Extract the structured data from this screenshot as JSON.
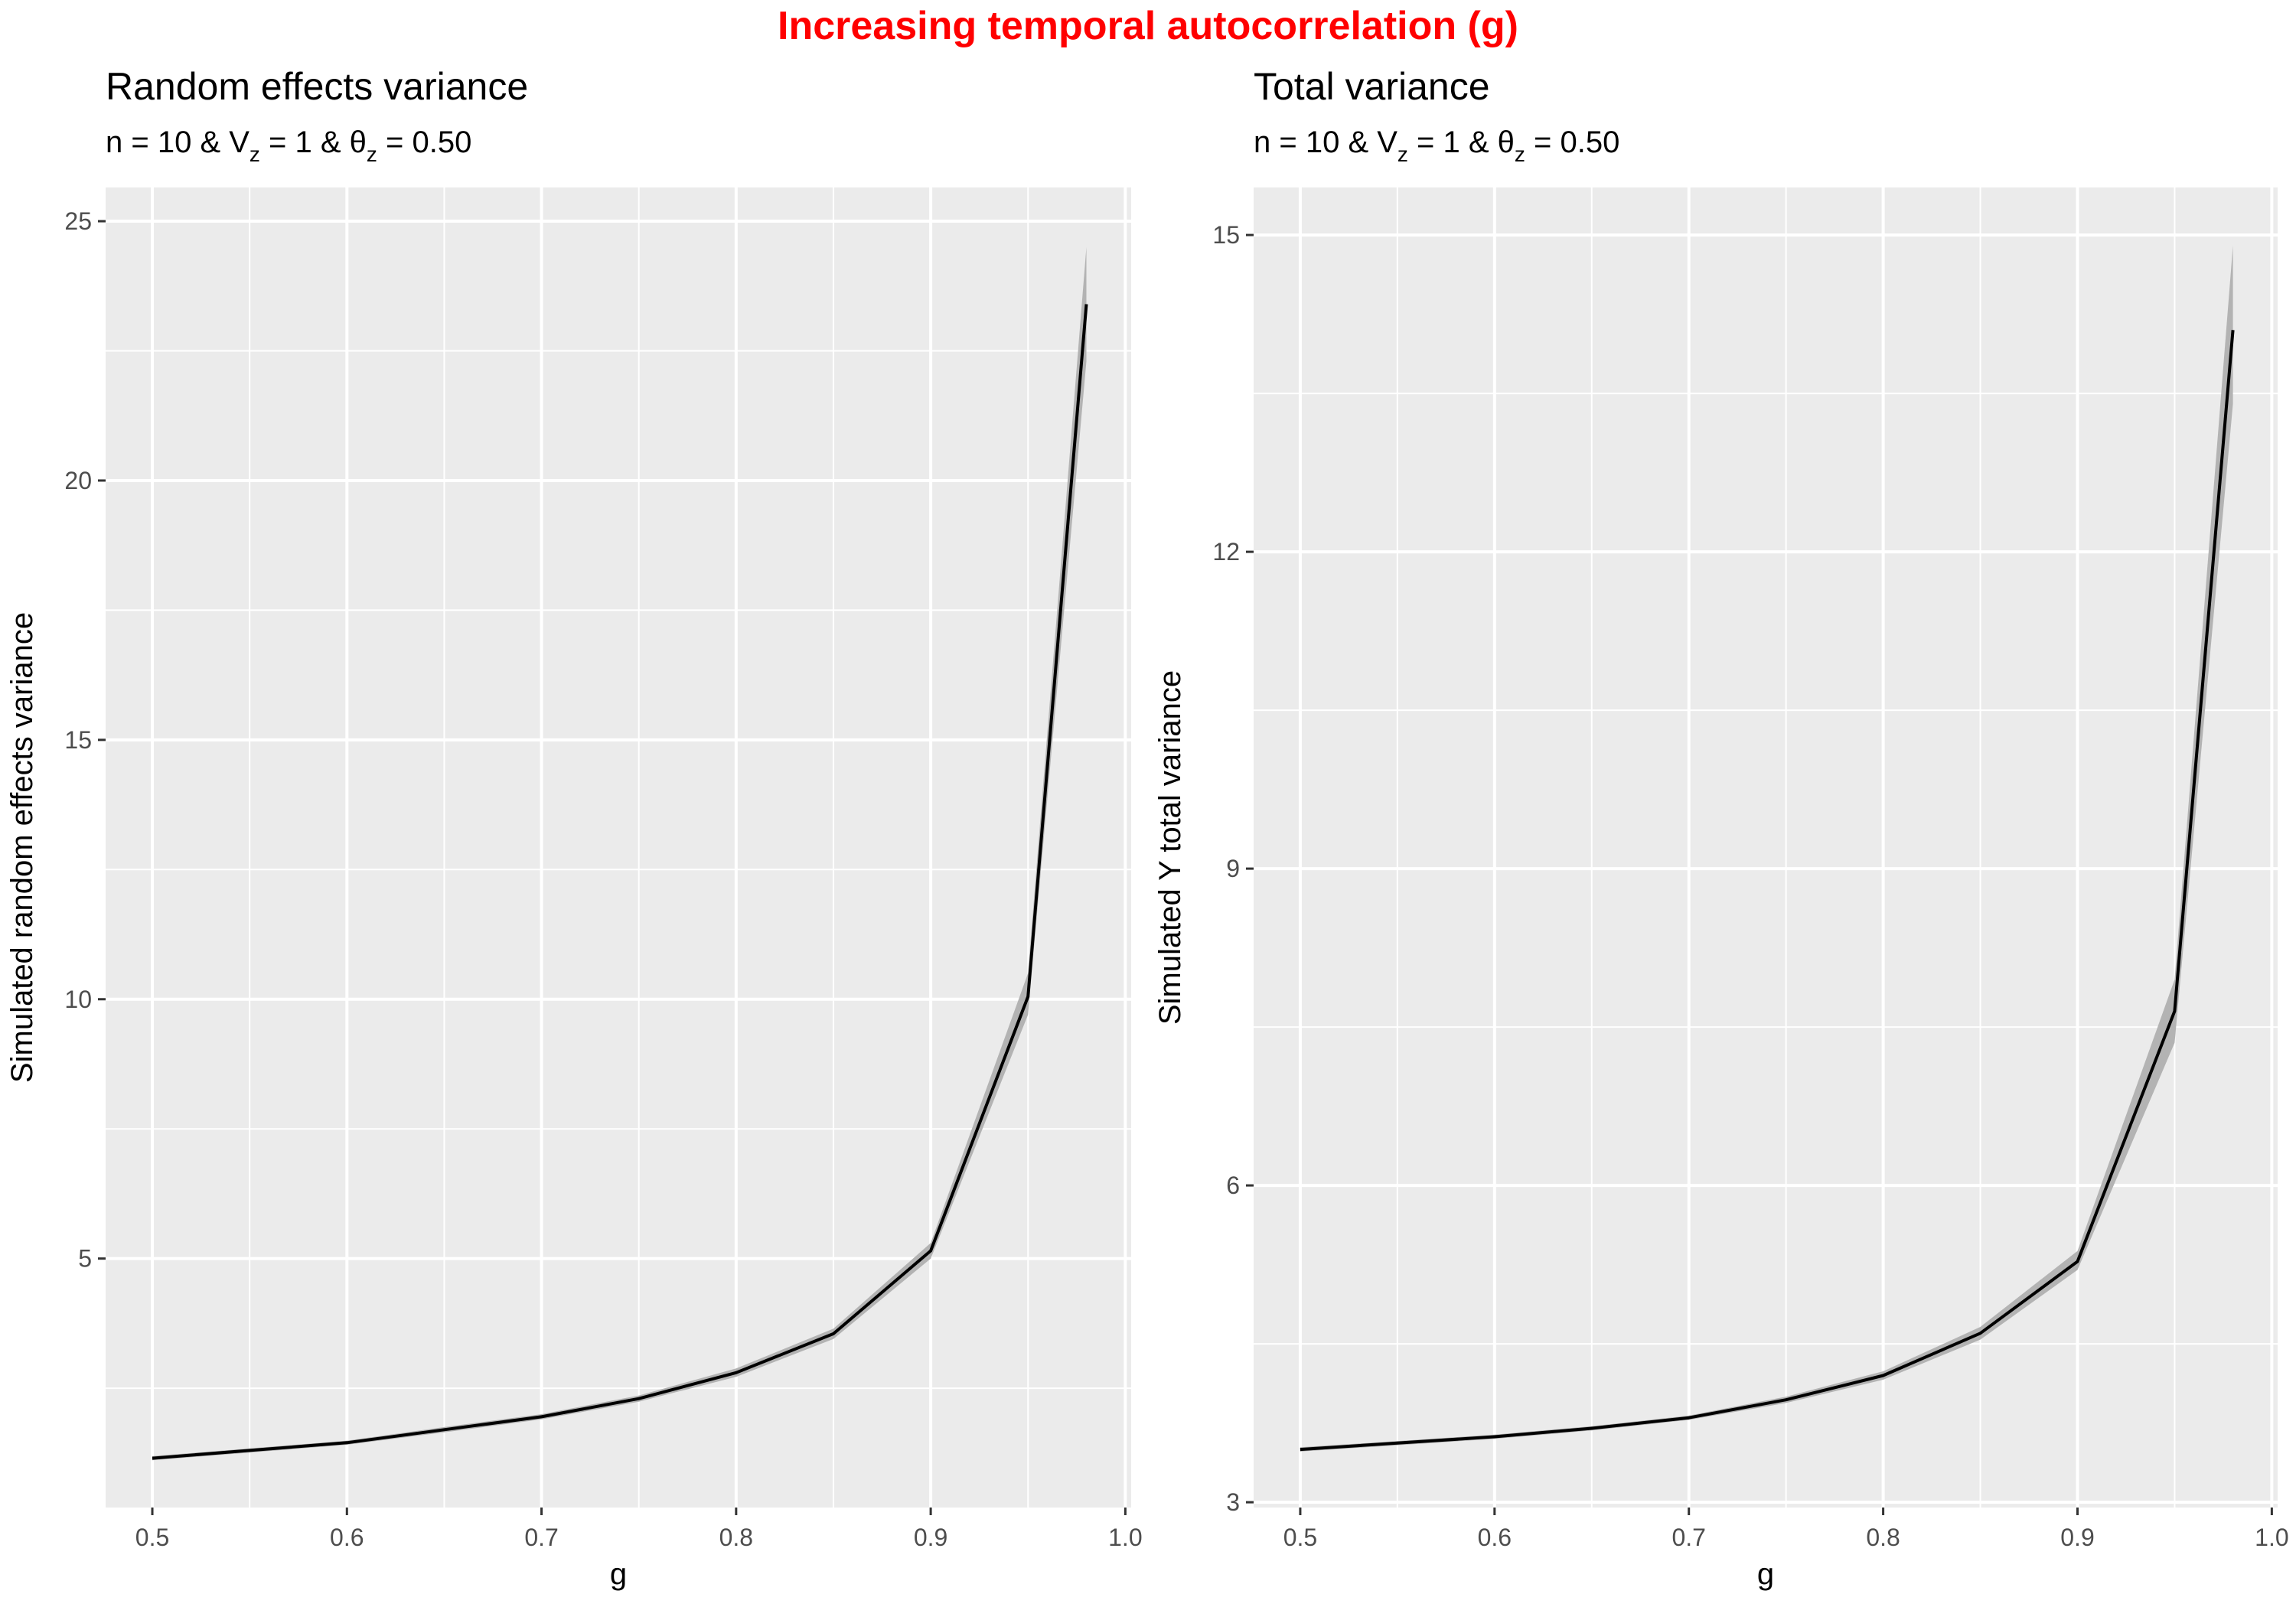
{
  "title": "Increasing temporal autocorrelation (g)",
  "colors": {
    "title": "#FF0000",
    "panel_bg": "#EBEBEB",
    "grid": "#FFFFFF",
    "line": "#000000",
    "ribbon": "#B3B3B3",
    "tick_label": "#4D4D4D"
  },
  "panels": [
    {
      "title": "Random effects variance",
      "subtitle": {
        "a": "n = 10 & V",
        "a_sub": "z",
        "b": " = 1 & θ",
        "b_sub": "z",
        "c": " = 0.50"
      }
    },
    {
      "title": "Total variance",
      "subtitle": {
        "a": "n = 10 & V",
        "a_sub": "z",
        "b": " = 1 & θ",
        "b_sub": "z",
        "c": " = 0.50"
      }
    }
  ],
  "chart_data": [
    {
      "type": "line",
      "title": "Random effects variance",
      "xlabel": "g",
      "ylabel": "Simulated random effects variance",
      "xlim": [
        0.476,
        1.003
      ],
      "ylim": [
        0.2,
        25.65
      ],
      "xticks": [
        0.5,
        0.6,
        0.7,
        0.8,
        0.9,
        1.0
      ],
      "xtick_labels": [
        "0.5",
        "0.6",
        "0.7",
        "0.8",
        "0.9",
        "1.0"
      ],
      "yticks": [
        5,
        10,
        15,
        20,
        25
      ],
      "ytick_labels": [
        "5",
        "10",
        "15",
        "20",
        "25"
      ],
      "grid": true,
      "legend": "none",
      "series": [
        {
          "x": [
            0.5,
            0.55,
            0.6,
            0.65,
            0.7,
            0.75,
            0.8,
            0.85,
            0.9,
            0.95,
            0.98
          ],
          "y": [
            1.15,
            1.3,
            1.45,
            1.7,
            1.95,
            2.3,
            2.8,
            3.55,
            5.15,
            10.05,
            23.4
          ],
          "lower": [
            1.11,
            1.26,
            1.41,
            1.65,
            1.9,
            2.24,
            2.72,
            3.45,
            5.0,
            9.7,
            22.3
          ],
          "upper": [
            1.19,
            1.34,
            1.49,
            1.75,
            2.0,
            2.36,
            2.88,
            3.65,
            5.3,
            10.5,
            24.5
          ]
        }
      ]
    },
    {
      "type": "line",
      "title": "Total variance",
      "xlabel": "g",
      "ylabel": "Simulated Y total variance",
      "xlim": [
        0.476,
        1.003
      ],
      "ylim": [
        2.95,
        15.45
      ],
      "xticks": [
        0.5,
        0.6,
        0.7,
        0.8,
        0.9,
        1.0
      ],
      "xtick_labels": [
        "0.5",
        "0.6",
        "0.7",
        "0.8",
        "0.9",
        "1.0"
      ],
      "yticks": [
        3,
        6,
        9,
        12,
        15
      ],
      "ytick_labels": [
        "3",
        "6",
        "9",
        "12",
        "15"
      ],
      "grid": true,
      "legend": "none",
      "series": [
        {
          "x": [
            0.5,
            0.55,
            0.6,
            0.65,
            0.7,
            0.75,
            0.8,
            0.85,
            0.9,
            0.95,
            0.98
          ],
          "y": [
            3.5,
            3.56,
            3.62,
            3.7,
            3.8,
            3.97,
            4.2,
            4.6,
            5.28,
            7.65,
            14.1
          ],
          "lower": [
            3.48,
            3.54,
            3.6,
            3.68,
            3.78,
            3.94,
            4.16,
            4.54,
            5.2,
            7.35,
            13.4
          ],
          "upper": [
            3.52,
            3.58,
            3.64,
            3.72,
            3.82,
            4.0,
            4.24,
            4.66,
            5.38,
            7.95,
            14.9
          ]
        }
      ]
    }
  ]
}
